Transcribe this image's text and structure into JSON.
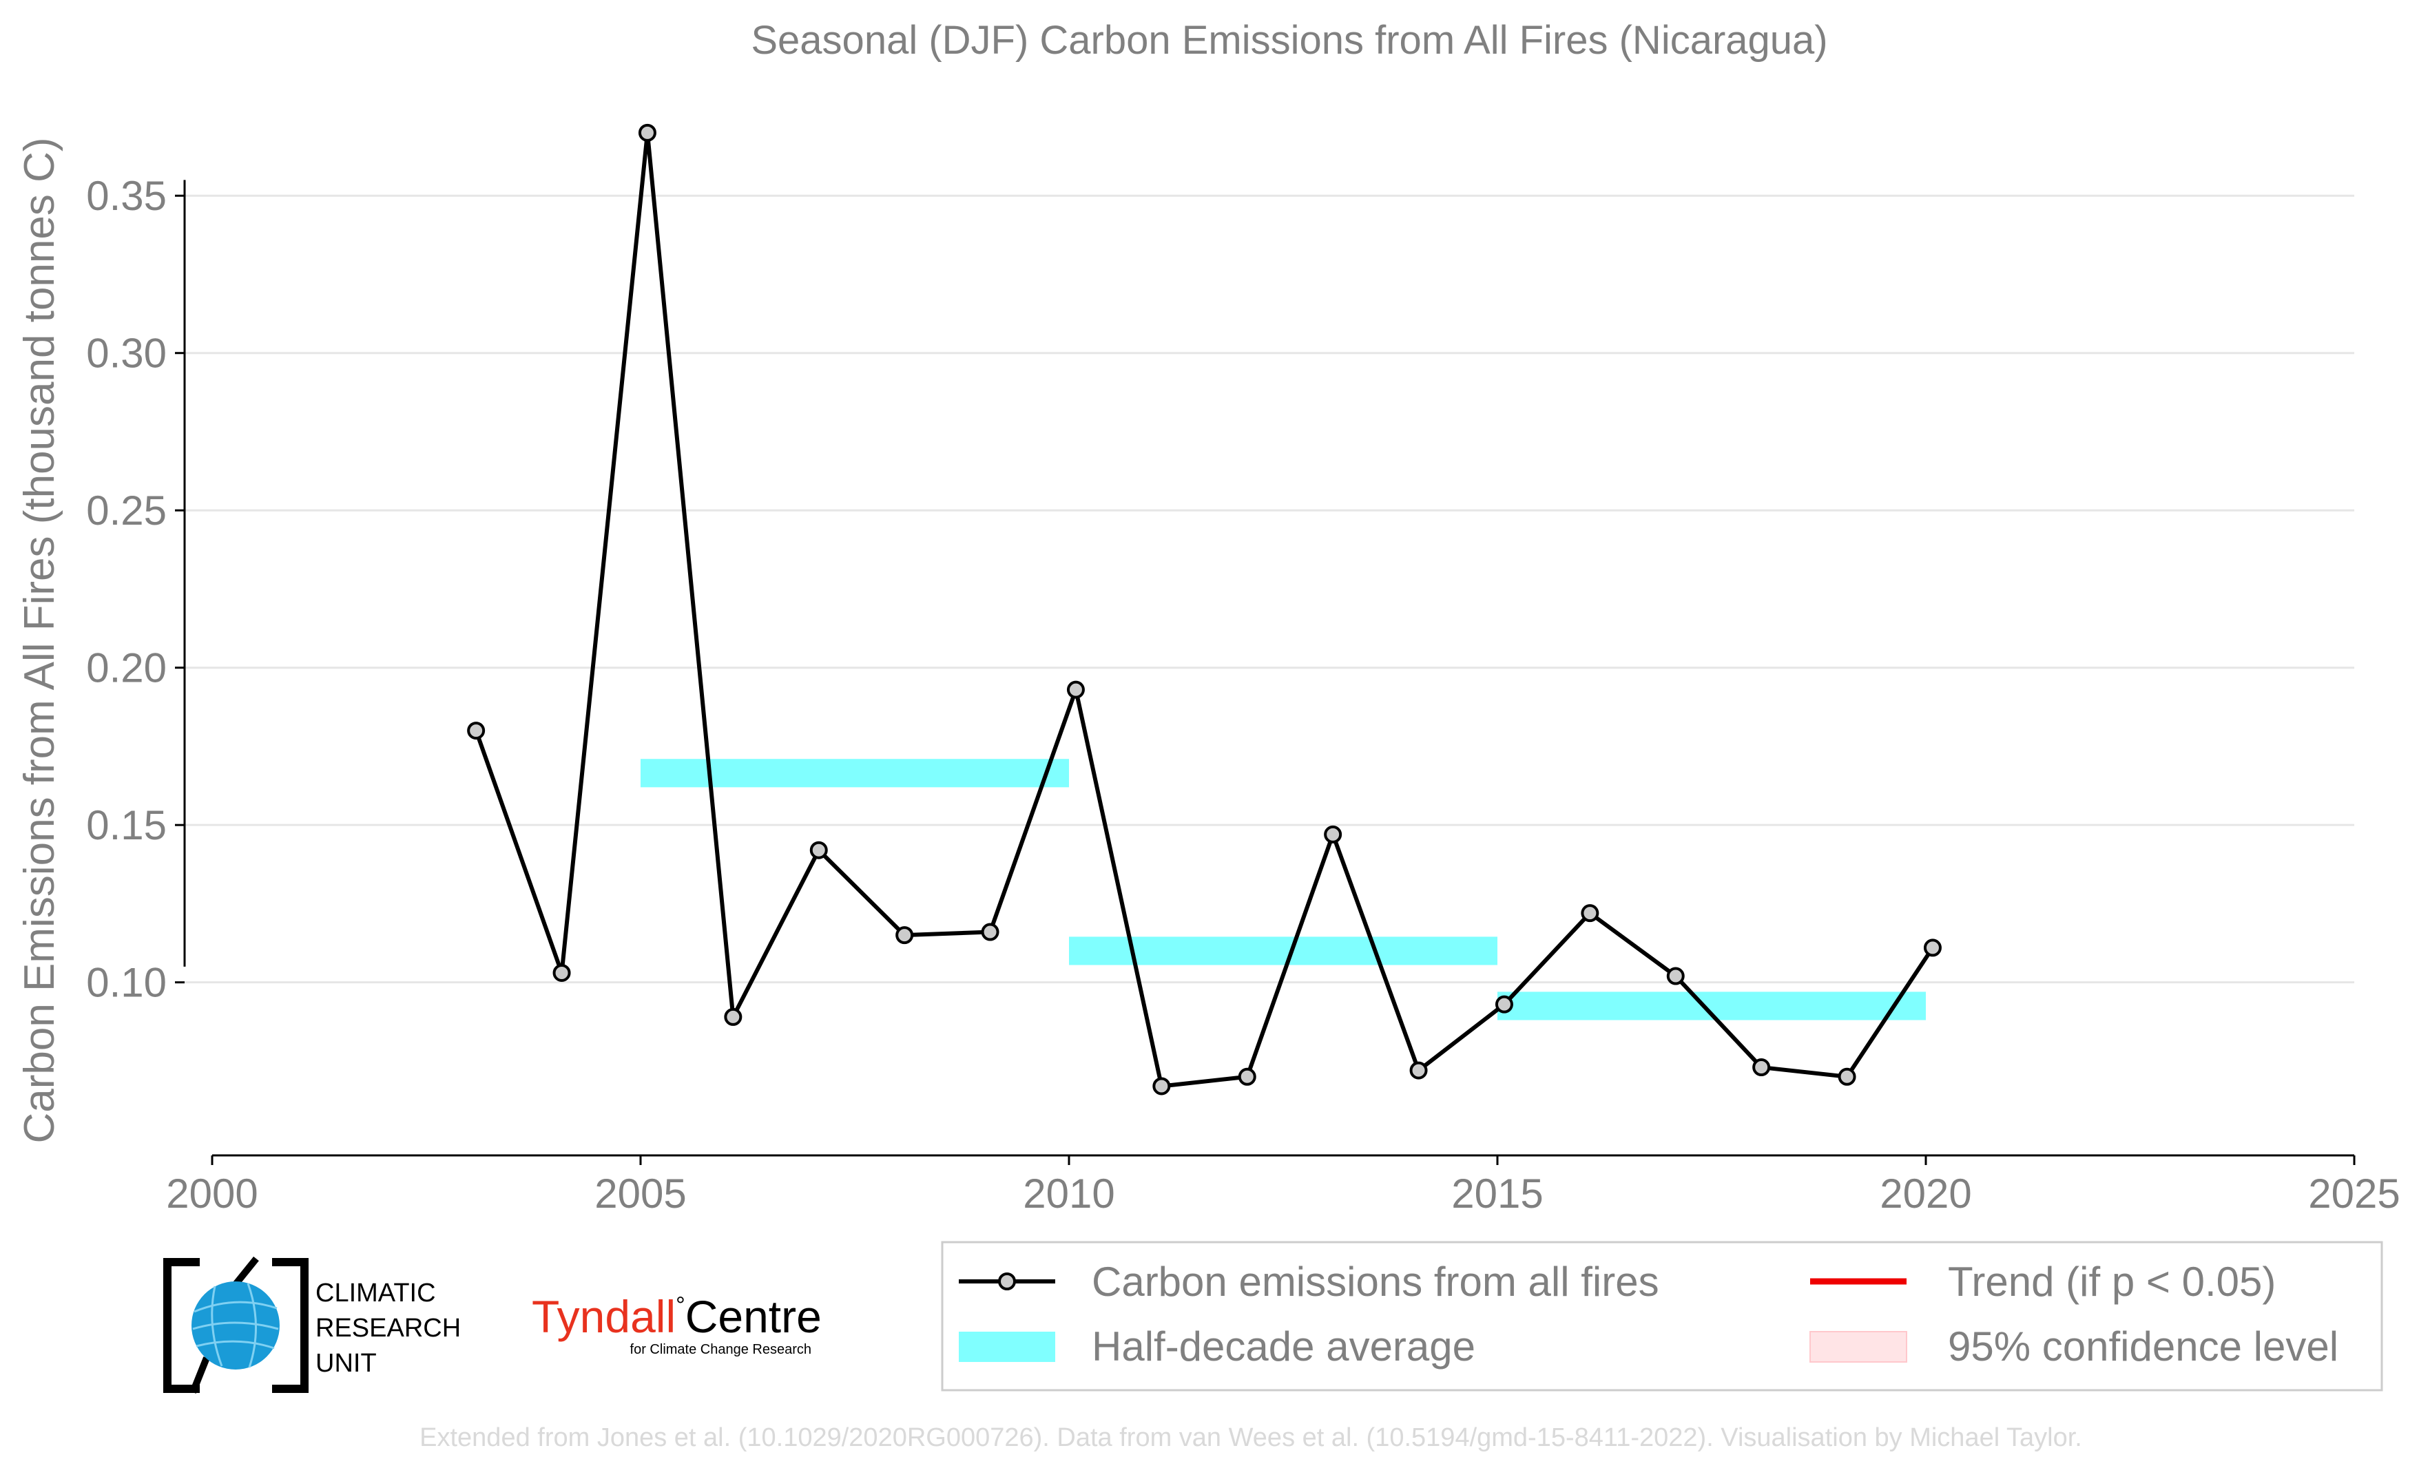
{
  "chart_data": {
    "type": "line",
    "title": "Seasonal (DJF) Carbon Emissions from All Fires (Nicaragua)",
    "xlabel": "",
    "ylabel": "Carbon Emissions from All Fires (thousand tonnes C)",
    "xlim": [
      2000,
      2025
    ],
    "ylim": [
      0.045,
      0.375
    ],
    "x_ticks": [
      2000,
      2005,
      2010,
      2015,
      2020,
      2025
    ],
    "y_ticks": [
      0.1,
      0.15,
      0.2,
      0.25,
      0.3,
      0.35
    ],
    "y_tick_labels": [
      "0.10",
      "0.15",
      "0.20",
      "0.25",
      "0.30",
      "0.35"
    ],
    "grid": "horizontal",
    "series": [
      {
        "name": "Carbon emissions from all fires",
        "x": [
          2003.08,
          2004.08,
          2005.08,
          2006.08,
          2007.08,
          2008.08,
          2009.08,
          2010.08,
          2011.08,
          2012.08,
          2013.08,
          2014.08,
          2015.08,
          2016.08,
          2017.08,
          2018.08,
          2019.08,
          2020.08
        ],
        "y": [
          0.18,
          0.103,
          0.37,
          0.089,
          0.142,
          0.115,
          0.116,
          0.193,
          0.067,
          0.07,
          0.147,
          0.072,
          0.093,
          0.122,
          0.102,
          0.073,
          0.07,
          0.111
        ],
        "color": "#000000",
        "marker_fill": "#cccccc"
      }
    ],
    "half_decade_averages": [
      {
        "x0": 2005,
        "x1": 2010,
        "y": 0.1665
      },
      {
        "x0": 2010,
        "x1": 2015,
        "y": 0.11
      },
      {
        "x0": 2015,
        "x1": 2020,
        "y": 0.0925
      }
    ],
    "half_decade_color": "#80ffff",
    "legend": {
      "placement": "bottom",
      "items": [
        {
          "label": "Carbon emissions from all fires",
          "kind": "line-marker",
          "color": "#000000"
        },
        {
          "label": "Trend (if p < 0.05)",
          "kind": "line",
          "color": "#ee0000"
        },
        {
          "label": "Half-decade average",
          "kind": "band",
          "color": "#80ffff"
        },
        {
          "label": "95% confidence level",
          "kind": "band",
          "color": "#ffe4e6"
        }
      ]
    }
  },
  "logos": {
    "cru": {
      "line1": "CLIMATIC",
      "line2": "RESEARCH",
      "line3": "UNIT",
      "icon": "globe-icon",
      "accent": "#1a9bd7"
    },
    "tyndall": {
      "name_red": "Tyndall",
      "degree": "°",
      "name_black": "Centre",
      "subtitle": "for Climate Change Research",
      "accent": "#e8321e"
    }
  },
  "footer": "Extended from Jones et al. (10.1029/2020RG000726). Data from van Wees et al. (10.5194/gmd-15-8411-2022). Visualisation by Michael Taylor."
}
